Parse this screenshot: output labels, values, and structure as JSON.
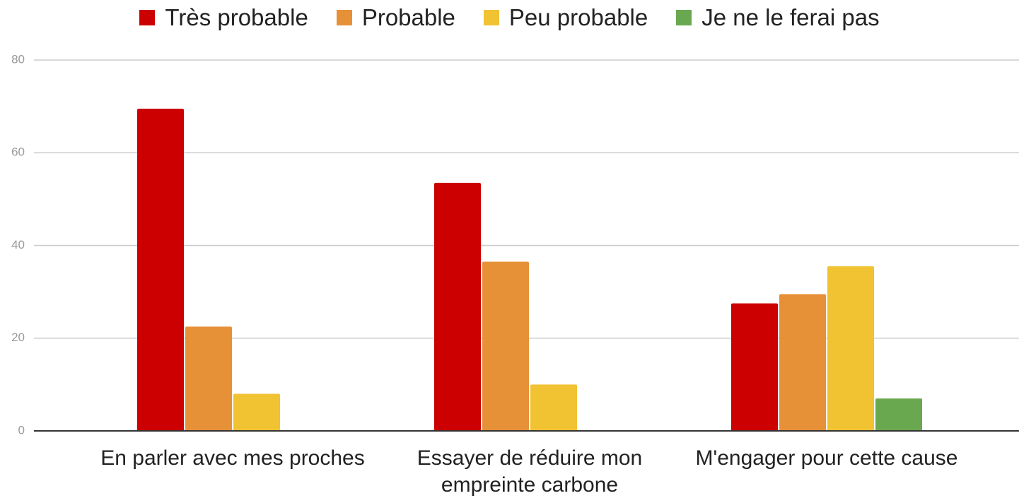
{
  "chart_data": {
    "type": "bar",
    "categories": [
      "En parler avec mes proches",
      "Essayer de réduire mon empreinte carbone",
      "M'engager pour cette cause"
    ],
    "series": [
      {
        "name": "Très probable",
        "color": "#cc0000",
        "values": [
          69.5,
          53.5,
          27.5
        ]
      },
      {
        "name": "Probable",
        "color": "#e69138",
        "values": [
          22.5,
          36.5,
          29.5
        ]
      },
      {
        "name": "Peu probable",
        "color": "#f1c232",
        "values": [
          8,
          10,
          35.5
        ]
      },
      {
        "name": "Je ne le ferai pas",
        "color": "#6aa84f",
        "values": [
          0,
          0,
          7
        ]
      }
    ],
    "ylim": [
      0,
      80
    ],
    "yticks": [
      0,
      20,
      40,
      60,
      80
    ],
    "grid": true,
    "legend": "top"
  }
}
